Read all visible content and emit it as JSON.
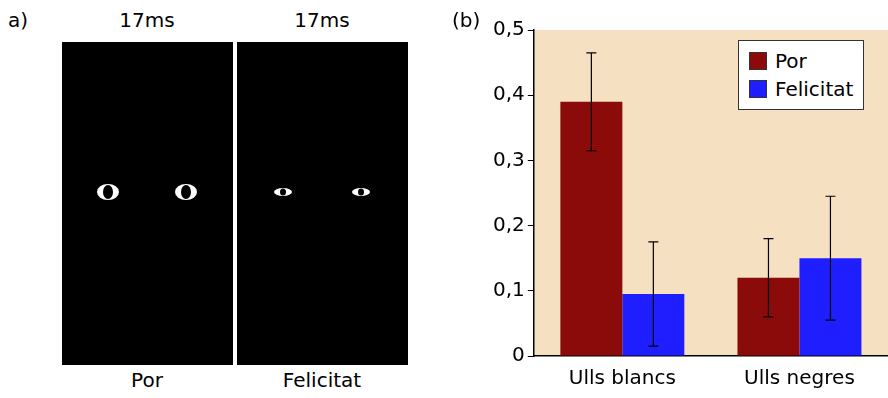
{
  "panel_a": {
    "label": "a)",
    "frames": [
      {
        "duration": "17ms",
        "label": "Por"
      },
      {
        "duration": "17ms",
        "label": "Felicitat"
      }
    ]
  },
  "chart_data": {
    "type": "bar",
    "title": "(b)",
    "categories": [
      "Ulls blancs",
      "Ulls negres"
    ],
    "series": [
      {
        "name": "Por",
        "color": "#8b0a0a",
        "values": [
          0.39,
          0.12
        ],
        "errors": [
          0.075,
          0.06
        ]
      },
      {
        "name": "Felicitat",
        "color": "#1e1eff",
        "values": [
          0.095,
          0.15
        ],
        "errors": [
          0.08,
          0.095
        ]
      }
    ],
    "ylim": [
      0,
      0.5
    ],
    "yticks": [
      0,
      {
        "value": 0.1,
        "label": "0,1"
      },
      {
        "value": 0.2,
        "label": "0,2"
      },
      {
        "value": 0.3,
        "label": "0,3"
      },
      {
        "value": 0.4,
        "label": "0,4"
      },
      {
        "value": 0.5,
        "label": "0,5"
      }
    ],
    "grid": false,
    "legend": "upper right"
  }
}
